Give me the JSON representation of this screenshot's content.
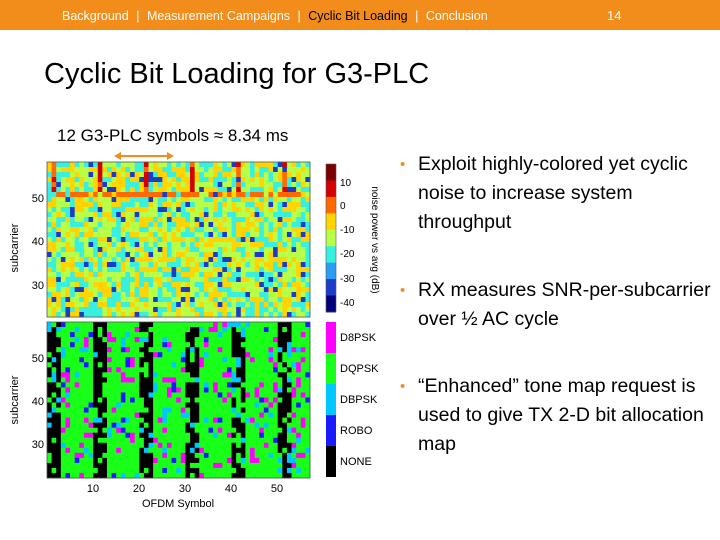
{
  "header": {
    "nav": [
      {
        "label": "Background",
        "active": false
      },
      {
        "label": "Measurement Campaigns",
        "active": false
      },
      {
        "label": "Cyclic Bit Loading",
        "active": true
      },
      {
        "label": "Conclusion",
        "active": false
      }
    ],
    "separator": "|",
    "page_number": "14",
    "colors": {
      "bar": "#f28c1a",
      "text": "#ffffff",
      "active": "#000000"
    }
  },
  "slide": {
    "title": "Cyclic Bit Loading for G3-PLC",
    "span_label": "12 G3-PLC symbols ≈ 8.34 ms",
    "bullets": [
      "Exploit highly-colored yet cyclic noise to increase system throughput",
      "RX measures SNR-per-subcarrier over ½ AC cycle",
      "“Enhanced” tone map request is used to give TX 2-D bit allocation map"
    ],
    "bullet_marker": "•"
  },
  "figure": {
    "top_heatmap": {
      "ylabel": "subcarrier",
      "yticks": [
        "50",
        "40",
        "30"
      ],
      "colorbar_label": "noise power vs avg (dB)",
      "colorbar_ticks": [
        "10",
        "0",
        "-10",
        "-20",
        "-30",
        "-40"
      ],
      "colorscale": [
        "#7a0000",
        "#d40000",
        "#ff6a00",
        "#ffd400",
        "#b8ff4a",
        "#38f0e0",
        "#2a9df4",
        "#1a3cc8",
        "#00007a"
      ]
    },
    "bottom_map": {
      "ylabel": "subcarrier",
      "yticks": [
        "50",
        "40",
        "30"
      ],
      "xlabel": "OFDM Symbol",
      "xticks": [
        "10",
        "20",
        "30",
        "40",
        "50"
      ],
      "legend": [
        {
          "label": "D8PSK",
          "color": "#ff00ff"
        },
        {
          "label": "DQPSK",
          "color": "#19ff19"
        },
        {
          "label": "DBPSK",
          "color": "#00c8ff"
        },
        {
          "label": "ROBO",
          "color": "#1a1aff"
        },
        {
          "label": "NONE",
          "color": "#000000"
        }
      ]
    }
  }
}
